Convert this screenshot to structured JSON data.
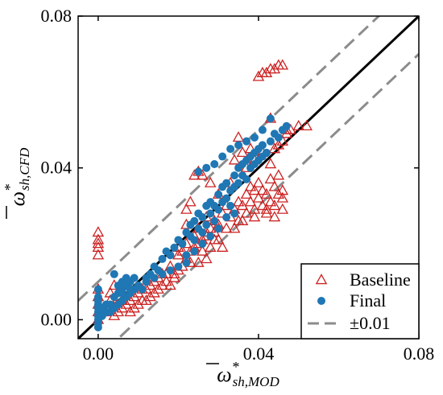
{
  "chart_data": {
    "type": "scatter",
    "xlim": [
      -0.005,
      0.08
    ],
    "ylim": [
      -0.005,
      0.08
    ],
    "ticks": [
      0.0,
      0.04,
      0.08
    ],
    "tick_labels": [
      "0.00",
      "0.04",
      "0.08"
    ],
    "grid": false,
    "xlabel": {
      "symbol": "ω",
      "sup": "*",
      "sub": "sh,MOD"
    },
    "ylabel": {
      "symbol": "ω",
      "sup": "*",
      "sub": "sh,CFD"
    },
    "legend_position": "bottom-right",
    "reference_lines": [
      {
        "name": "",
        "style": "solid",
        "color": "#000000",
        "offset": 0.0
      },
      {
        "name": "±0.01",
        "style": "dashed",
        "color": "#8c8c8c",
        "offset": 0.01
      },
      {
        "name": "",
        "style": "dashed",
        "color": "#8c8c8c",
        "offset": -0.01
      }
    ],
    "series": [
      {
        "name": "Baseline",
        "marker": "open-triangle",
        "color": "#cc2222",
        "points": [
          [
            0.0,
            0.023
          ],
          [
            0.0,
            0.021
          ],
          [
            0.0,
            0.02
          ],
          [
            0.0,
            0.019
          ],
          [
            0.0,
            0.017
          ],
          [
            0.0,
            0.008
          ],
          [
            0.0,
            0.006
          ],
          [
            0.0,
            0.004
          ],
          [
            0.0,
            0.002
          ],
          [
            0.0,
            0.0
          ],
          [
            0.001,
            0.002
          ],
          [
            0.002,
            0.002
          ],
          [
            0.003,
            0.005
          ],
          [
            0.003,
            0.007
          ],
          [
            0.004,
            0.009
          ],
          [
            0.004,
            0.001
          ],
          [
            0.005,
            0.006
          ],
          [
            0.005,
            0.002
          ],
          [
            0.006,
            0.003
          ],
          [
            0.006,
            0.005
          ],
          [
            0.007,
            0.004
          ],
          [
            0.008,
            0.002
          ],
          [
            0.008,
            0.005
          ],
          [
            0.009,
            0.003
          ],
          [
            0.009,
            0.006
          ],
          [
            0.01,
            0.004
          ],
          [
            0.01,
            0.007
          ],
          [
            0.011,
            0.005
          ],
          [
            0.011,
            0.008
          ],
          [
            0.012,
            0.005
          ],
          [
            0.012,
            0.008
          ],
          [
            0.013,
            0.006
          ],
          [
            0.013,
            0.009
          ],
          [
            0.014,
            0.007
          ],
          [
            0.014,
            0.01
          ],
          [
            0.015,
            0.008
          ],
          [
            0.015,
            0.011
          ],
          [
            0.016,
            0.009
          ],
          [
            0.016,
            0.012
          ],
          [
            0.017,
            0.01
          ],
          [
            0.017,
            0.012
          ],
          [
            0.018,
            0.009
          ],
          [
            0.018,
            0.014
          ],
          [
            0.019,
            0.012
          ],
          [
            0.019,
            0.011
          ],
          [
            0.02,
            0.013
          ],
          [
            0.02,
            0.017
          ],
          [
            0.02,
            0.019
          ],
          [
            0.021,
            0.014
          ],
          [
            0.021,
            0.018
          ],
          [
            0.022,
            0.016
          ],
          [
            0.022,
            0.02
          ],
          [
            0.023,
            0.018
          ],
          [
            0.023,
            0.015
          ],
          [
            0.024,
            0.019
          ],
          [
            0.024,
            0.022
          ],
          [
            0.025,
            0.02
          ],
          [
            0.025,
            0.024
          ],
          [
            0.026,
            0.018
          ],
          [
            0.026,
            0.021
          ],
          [
            0.027,
            0.022
          ],
          [
            0.027,
            0.027
          ],
          [
            0.028,
            0.024
          ],
          [
            0.028,
            0.019
          ],
          [
            0.029,
            0.026
          ],
          [
            0.029,
            0.023
          ],
          [
            0.03,
            0.025
          ],
          [
            0.03,
            0.021
          ],
          [
            0.031,
            0.028
          ],
          [
            0.032,
            0.024
          ],
          [
            0.032,
            0.03
          ],
          [
            0.033,
            0.027
          ],
          [
            0.034,
            0.029
          ],
          [
            0.035,
            0.026
          ],
          [
            0.035,
            0.031
          ],
          [
            0.036,
            0.03
          ],
          [
            0.037,
            0.028
          ],
          [
            0.037,
            0.033
          ],
          [
            0.038,
            0.031
          ],
          [
            0.038,
            0.035
          ],
          [
            0.039,
            0.029
          ],
          [
            0.039,
            0.034
          ],
          [
            0.04,
            0.032
          ],
          [
            0.04,
            0.036
          ],
          [
            0.041,
            0.03
          ],
          [
            0.041,
            0.034
          ],
          [
            0.042,
            0.028
          ],
          [
            0.042,
            0.033
          ],
          [
            0.043,
            0.031
          ],
          [
            0.043,
            0.037
          ],
          [
            0.044,
            0.035
          ],
          [
            0.044,
            0.03
          ],
          [
            0.045,
            0.033
          ],
          [
            0.045,
            0.038
          ],
          [
            0.046,
            0.032
          ],
          [
            0.046,
            0.034
          ],
          [
            0.022,
            0.029
          ],
          [
            0.023,
            0.031
          ],
          [
            0.024,
            0.038
          ],
          [
            0.025,
            0.039
          ],
          [
            0.026,
            0.038
          ],
          [
            0.022,
            0.025
          ],
          [
            0.028,
            0.036
          ],
          [
            0.03,
            0.033
          ],
          [
            0.033,
            0.036
          ],
          [
            0.037,
            0.04
          ],
          [
            0.039,
            0.042
          ],
          [
            0.041,
            0.044
          ],
          [
            0.043,
            0.041
          ],
          [
            0.044,
            0.045
          ],
          [
            0.045,
            0.046
          ],
          [
            0.046,
            0.047
          ],
          [
            0.047,
            0.049
          ],
          [
            0.048,
            0.05
          ],
          [
            0.05,
            0.051
          ],
          [
            0.052,
            0.051
          ],
          [
            0.035,
            0.048
          ],
          [
            0.043,
            0.053
          ],
          [
            0.04,
            0.064
          ],
          [
            0.041,
            0.065
          ],
          [
            0.042,
            0.065
          ],
          [
            0.043,
            0.066
          ],
          [
            0.044,
            0.066
          ],
          [
            0.045,
            0.067
          ],
          [
            0.046,
            0.067
          ],
          [
            0.027,
            0.023
          ],
          [
            0.029,
            0.021
          ],
          [
            0.031,
            0.019
          ],
          [
            0.034,
            0.024
          ],
          [
            0.036,
            0.026
          ],
          [
            0.039,
            0.027
          ],
          [
            0.042,
            0.029
          ],
          [
            0.044,
            0.027
          ],
          [
            0.046,
            0.029
          ],
          [
            0.034,
            0.042
          ],
          [
            0.036,
            0.044
          ],
          [
            0.038,
            0.045
          ],
          [
            0.047,
            0.05
          ],
          [
            0.025,
            0.015
          ],
          [
            0.027,
            0.016
          ]
        ]
      },
      {
        "name": "Final",
        "marker": "filled-circle",
        "color": "#1f77b4",
        "points": [
          [
            0.0,
            0.008
          ],
          [
            0.0,
            0.006
          ],
          [
            0.0,
            0.005
          ],
          [
            0.0,
            0.004
          ],
          [
            0.0,
            0.003
          ],
          [
            0.0,
            0.002
          ],
          [
            0.0,
            0.001
          ],
          [
            0.0,
            0.0
          ],
          [
            0.0,
            -0.001
          ],
          [
            0.0,
            -0.002
          ],
          [
            0.001,
            0.001
          ],
          [
            0.001,
            0.003
          ],
          [
            0.002,
            0.002
          ],
          [
            0.002,
            0.004
          ],
          [
            0.003,
            0.002
          ],
          [
            0.003,
            0.004
          ],
          [
            0.004,
            0.003
          ],
          [
            0.004,
            0.006
          ],
          [
            0.004,
            0.012
          ],
          [
            0.005,
            0.004
          ],
          [
            0.005,
            0.007
          ],
          [
            0.005,
            0.009
          ],
          [
            0.006,
            0.005
          ],
          [
            0.006,
            0.008
          ],
          [
            0.006,
            0.01
          ],
          [
            0.007,
            0.006
          ],
          [
            0.007,
            0.009
          ],
          [
            0.007,
            0.011
          ],
          [
            0.008,
            0.007
          ],
          [
            0.008,
            0.01
          ],
          [
            0.009,
            0.008
          ],
          [
            0.009,
            0.011
          ],
          [
            0.01,
            0.009
          ],
          [
            0.011,
            0.008
          ],
          [
            0.012,
            0.011
          ],
          [
            0.013,
            0.012
          ],
          [
            0.014,
            0.014
          ],
          [
            0.015,
            0.013
          ],
          [
            0.016,
            0.016
          ],
          [
            0.017,
            0.018
          ],
          [
            0.018,
            0.017
          ],
          [
            0.019,
            0.019
          ],
          [
            0.02,
            0.021
          ],
          [
            0.021,
            0.02
          ],
          [
            0.022,
            0.023
          ],
          [
            0.022,
            0.017
          ],
          [
            0.023,
            0.022
          ],
          [
            0.023,
            0.025
          ],
          [
            0.024,
            0.021
          ],
          [
            0.024,
            0.026
          ],
          [
            0.025,
            0.024
          ],
          [
            0.025,
            0.028
          ],
          [
            0.026,
            0.023
          ],
          [
            0.026,
            0.027
          ],
          [
            0.027,
            0.025
          ],
          [
            0.027,
            0.03
          ],
          [
            0.028,
            0.028
          ],
          [
            0.028,
            0.031
          ],
          [
            0.029,
            0.026
          ],
          [
            0.029,
            0.03
          ],
          [
            0.03,
            0.029
          ],
          [
            0.03,
            0.033
          ],
          [
            0.031,
            0.031
          ],
          [
            0.031,
            0.035
          ],
          [
            0.032,
            0.032
          ],
          [
            0.032,
            0.036
          ],
          [
            0.033,
            0.034
          ],
          [
            0.033,
            0.03
          ],
          [
            0.034,
            0.035
          ],
          [
            0.034,
            0.038
          ],
          [
            0.035,
            0.036
          ],
          [
            0.035,
            0.04
          ],
          [
            0.036,
            0.038
          ],
          [
            0.036,
            0.041
          ],
          [
            0.037,
            0.037
          ],
          [
            0.037,
            0.042
          ],
          [
            0.038,
            0.04
          ],
          [
            0.038,
            0.043
          ],
          [
            0.039,
            0.041
          ],
          [
            0.039,
            0.044
          ],
          [
            0.04,
            0.042
          ],
          [
            0.04,
            0.045
          ],
          [
            0.041,
            0.043
          ],
          [
            0.041,
            0.046
          ],
          [
            0.042,
            0.044
          ],
          [
            0.043,
            0.047
          ],
          [
            0.044,
            0.049
          ],
          [
            0.045,
            0.048
          ],
          [
            0.046,
            0.05
          ],
          [
            0.047,
            0.051
          ],
          [
            0.043,
            0.053
          ],
          [
            0.041,
            0.05
          ],
          [
            0.039,
            0.048
          ],
          [
            0.037,
            0.047
          ],
          [
            0.035,
            0.046
          ],
          [
            0.033,
            0.045
          ],
          [
            0.031,
            0.043
          ],
          [
            0.029,
            0.041
          ],
          [
            0.027,
            0.04
          ],
          [
            0.025,
            0.039
          ],
          [
            0.034,
            0.028
          ],
          [
            0.032,
            0.027
          ],
          [
            0.03,
            0.024
          ],
          [
            0.028,
            0.022
          ],
          [
            0.026,
            0.02
          ],
          [
            0.024,
            0.018
          ],
          [
            0.022,
            0.015
          ],
          [
            0.02,
            0.014
          ],
          [
            0.018,
            0.013
          ],
          [
            0.016,
            0.012
          ],
          [
            0.014,
            0.011
          ],
          [
            0.012,
            0.01
          ],
          [
            0.01,
            0.009
          ],
          [
            0.008,
            0.008
          ],
          [
            0.006,
            0.007
          ]
        ]
      }
    ]
  }
}
